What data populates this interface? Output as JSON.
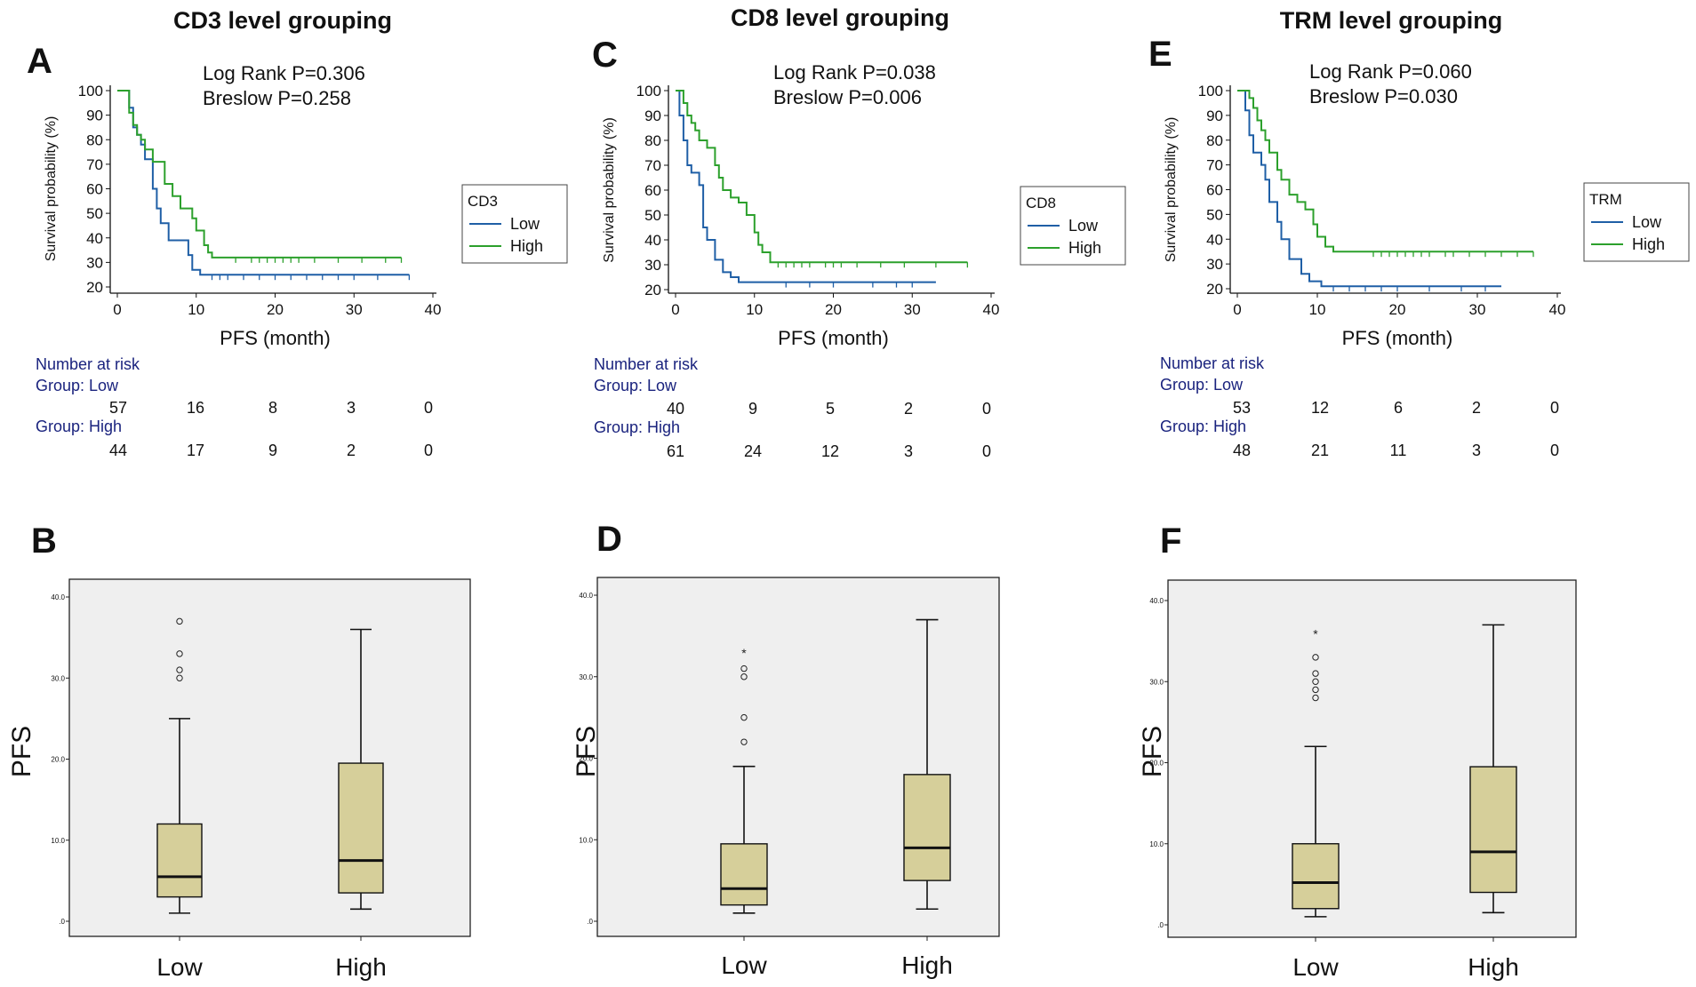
{
  "chart_data": [
    {
      "id": "A",
      "type": "line",
      "subtype": "kaplan-meier",
      "title": "CD3 level grouping",
      "panel_letter": "A",
      "xlabel": "PFS (month)",
      "ylabel": "Survival probability (%)",
      "xlim": [
        0,
        40
      ],
      "ylim": [
        20,
        100
      ],
      "xticks": [
        "0",
        "10",
        "20",
        "30",
        "40"
      ],
      "yticks": [
        "20",
        "30",
        "40",
        "50",
        "60",
        "70",
        "80",
        "90",
        "100"
      ],
      "stats": [
        "Log Rank P=0.306",
        "Breslow P=0.258"
      ],
      "legend_title": "CD3",
      "series": [
        {
          "name": "Low",
          "color": "#1f5fa6",
          "steps": [
            [
              0,
              100
            ],
            [
              1.5,
              100
            ],
            [
              1.5,
              93
            ],
            [
              2,
              93
            ],
            [
              2,
              85
            ],
            [
              2.5,
              85
            ],
            [
              2.5,
              82
            ],
            [
              3,
              82
            ],
            [
              3,
              78
            ],
            [
              3.5,
              78
            ],
            [
              3.5,
              72
            ],
            [
              4.5,
              72
            ],
            [
              4.5,
              60
            ],
            [
              5,
              60
            ],
            [
              5,
              52
            ],
            [
              5.5,
              52
            ],
            [
              5.5,
              46
            ],
            [
              6.5,
              46
            ],
            [
              6.5,
              39
            ],
            [
              9,
              39
            ],
            [
              9,
              33
            ],
            [
              9.5,
              33
            ],
            [
              9.5,
              27
            ],
            [
              10.5,
              27
            ],
            [
              10.5,
              25
            ],
            [
              37,
              25
            ]
          ],
          "censors": [
            12,
            13,
            14,
            16,
            18,
            20,
            22,
            24,
            26,
            28,
            30,
            33,
            37
          ]
        },
        {
          "name": "High",
          "color": "#2ca02c",
          "steps": [
            [
              0,
              100
            ],
            [
              1.5,
              100
            ],
            [
              1.5,
              91
            ],
            [
              2,
              91
            ],
            [
              2,
              86
            ],
            [
              2.5,
              86
            ],
            [
              2.5,
              82
            ],
            [
              3,
              82
            ],
            [
              3,
              80
            ],
            [
              3.5,
              80
            ],
            [
              3.5,
              76
            ],
            [
              4.5,
              76
            ],
            [
              4.5,
              71
            ],
            [
              6,
              71
            ],
            [
              6,
              62
            ],
            [
              7,
              62
            ],
            [
              7,
              57
            ],
            [
              8,
              57
            ],
            [
              8,
              52
            ],
            [
              9.5,
              52
            ],
            [
              9.5,
              48
            ],
            [
              10,
              48
            ],
            [
              10,
              43
            ],
            [
              11,
              43
            ],
            [
              11,
              37
            ],
            [
              11.5,
              37
            ],
            [
              11.5,
              34
            ],
            [
              12,
              34
            ],
            [
              12,
              32
            ],
            [
              36,
              32
            ]
          ],
          "censors": [
            15,
            17,
            18,
            19,
            20,
            21,
            22,
            23,
            25,
            28,
            31,
            34,
            36
          ]
        }
      ],
      "risk_table": {
        "header": "Number at risk",
        "rows": [
          {
            "label": "Group: Low",
            "values": [
              "57",
              "16",
              "8",
              "3",
              "0"
            ]
          },
          {
            "label": "Group: High",
            "values": [
              "44",
              "17",
              "9",
              "2",
              "0"
            ]
          }
        ]
      }
    },
    {
      "id": "C",
      "type": "line",
      "subtype": "kaplan-meier",
      "title": "CD8 level grouping",
      "panel_letter": "C",
      "xlabel": "PFS (month)",
      "ylabel": "Survival probability (%)",
      "xlim": [
        0,
        40
      ],
      "ylim": [
        20,
        100
      ],
      "xticks": [
        "0",
        "10",
        "20",
        "30",
        "40"
      ],
      "yticks": [
        "20",
        "30",
        "40",
        "50",
        "60",
        "70",
        "80",
        "90",
        "100"
      ],
      "stats": [
        "Log Rank P=0.038",
        "Breslow P=0.006"
      ],
      "legend_title": "CD8",
      "series": [
        {
          "name": "Low",
          "color": "#1f5fa6",
          "steps": [
            [
              0,
              100
            ],
            [
              0.5,
              100
            ],
            [
              0.5,
              90
            ],
            [
              1,
              90
            ],
            [
              1,
              80
            ],
            [
              1.5,
              80
            ],
            [
              1.5,
              70
            ],
            [
              2,
              70
            ],
            [
              2,
              67
            ],
            [
              3,
              67
            ],
            [
              3,
              62
            ],
            [
              3.5,
              62
            ],
            [
              3.5,
              45
            ],
            [
              4,
              45
            ],
            [
              4,
              40
            ],
            [
              5,
              40
            ],
            [
              5,
              32
            ],
            [
              6,
              32
            ],
            [
              6,
              27
            ],
            [
              7,
              27
            ],
            [
              7,
              25
            ],
            [
              8,
              25
            ],
            [
              8,
              23
            ],
            [
              33,
              23
            ]
          ],
          "censors": [
            14,
            17,
            20,
            25,
            28,
            30
          ]
        },
        {
          "name": "High",
          "color": "#2ca02c",
          "steps": [
            [
              0,
              100
            ],
            [
              1,
              100
            ],
            [
              1,
              95
            ],
            [
              1.5,
              95
            ],
            [
              1.5,
              90
            ],
            [
              2,
              90
            ],
            [
              2,
              87
            ],
            [
              2.5,
              87
            ],
            [
              2.5,
              84
            ],
            [
              3,
              84
            ],
            [
              3,
              80
            ],
            [
              4,
              80
            ],
            [
              4,
              77
            ],
            [
              5,
              77
            ],
            [
              5,
              70
            ],
            [
              5.5,
              70
            ],
            [
              5.5,
              65
            ],
            [
              6,
              65
            ],
            [
              6,
              60
            ],
            [
              7,
              60
            ],
            [
              7,
              57
            ],
            [
              8,
              57
            ],
            [
              8,
              55
            ],
            [
              9,
              55
            ],
            [
              9,
              50
            ],
            [
              10,
              50
            ],
            [
              10,
              43
            ],
            [
              10.5,
              43
            ],
            [
              10.5,
              38
            ],
            [
              11,
              38
            ],
            [
              11,
              35
            ],
            [
              12,
              35
            ],
            [
              12,
              31
            ],
            [
              37,
              31
            ]
          ],
          "censors": [
            13,
            14,
            15,
            16,
            17,
            19,
            20,
            21,
            23,
            26,
            29,
            33,
            37
          ]
        }
      ],
      "risk_table": {
        "header": "Number at risk",
        "rows": [
          {
            "label": "Group: Low",
            "values": [
              "40",
              "9",
              "5",
              "2",
              "0"
            ]
          },
          {
            "label": "Group: High",
            "values": [
              "61",
              "24",
              "12",
              "3",
              "0"
            ]
          }
        ]
      }
    },
    {
      "id": "E",
      "type": "line",
      "subtype": "kaplan-meier",
      "title": "TRM level grouping",
      "panel_letter": "E",
      "xlabel": "PFS (month)",
      "ylabel": "Survival probability (%)",
      "xlim": [
        0,
        40
      ],
      "ylim": [
        20,
        100
      ],
      "xticks": [
        "0",
        "10",
        "20",
        "30",
        "40"
      ],
      "yticks": [
        "20",
        "30",
        "40",
        "50",
        "60",
        "70",
        "80",
        "90",
        "100"
      ],
      "stats": [
        "Log Rank P=0.060",
        "Breslow P=0.030"
      ],
      "legend_title": "TRM",
      "series": [
        {
          "name": "Low",
          "color": "#1f5fa6",
          "steps": [
            [
              0,
              100
            ],
            [
              1,
              100
            ],
            [
              1,
              92
            ],
            [
              1.5,
              92
            ],
            [
              1.5,
              82
            ],
            [
              2,
              82
            ],
            [
              2,
              75
            ],
            [
              3,
              75
            ],
            [
              3,
              70
            ],
            [
              3.5,
              70
            ],
            [
              3.5,
              64
            ],
            [
              4,
              64
            ],
            [
              4,
              55
            ],
            [
              5,
              55
            ],
            [
              5,
              47
            ],
            [
              5.5,
              47
            ],
            [
              5.5,
              40
            ],
            [
              6.5,
              40
            ],
            [
              6.5,
              32
            ],
            [
              8,
              32
            ],
            [
              8,
              26
            ],
            [
              9,
              26
            ],
            [
              9,
              23
            ],
            [
              10.5,
              23
            ],
            [
              10.5,
              21
            ],
            [
              33,
              21
            ]
          ],
          "censors": [
            12,
            14,
            16,
            18,
            20,
            24,
            28,
            31
          ]
        },
        {
          "name": "High",
          "color": "#2ca02c",
          "steps": [
            [
              0,
              100
            ],
            [
              1.5,
              100
            ],
            [
              1.5,
              97
            ],
            [
              2,
              97
            ],
            [
              2,
              93
            ],
            [
              2.5,
              93
            ],
            [
              2.5,
              88
            ],
            [
              3,
              88
            ],
            [
              3,
              84
            ],
            [
              3.5,
              84
            ],
            [
              3.5,
              80
            ],
            [
              4,
              80
            ],
            [
              4,
              75
            ],
            [
              5,
              75
            ],
            [
              5,
              68
            ],
            [
              5.5,
              68
            ],
            [
              5.5,
              64
            ],
            [
              6.5,
              64
            ],
            [
              6.5,
              58
            ],
            [
              7.5,
              58
            ],
            [
              7.5,
              55
            ],
            [
              8.5,
              55
            ],
            [
              8.5,
              52
            ],
            [
              9.5,
              52
            ],
            [
              9.5,
              46
            ],
            [
              10,
              46
            ],
            [
              10,
              41
            ],
            [
              11,
              41
            ],
            [
              11,
              37
            ],
            [
              12,
              37
            ],
            [
              12,
              35
            ],
            [
              37,
              35
            ]
          ],
          "censors": [
            17,
            18,
            19,
            20,
            21,
            22,
            23,
            24,
            26,
            27,
            29,
            31,
            33,
            35,
            37
          ]
        }
      ],
      "risk_table": {
        "header": "Number at risk",
        "rows": [
          {
            "label": "Group: Low",
            "values": [
              "53",
              "12",
              "6",
              "2",
              "0"
            ]
          },
          {
            "label": "Group: High",
            "values": [
              "48",
              "21",
              "11",
              "3",
              "0"
            ]
          }
        ]
      }
    },
    {
      "id": "B",
      "type": "box",
      "panel_letter": "B",
      "ylabel": "PFS",
      "ylim": [
        0,
        40
      ],
      "yticks": [
        ".0",
        "10.0",
        "20.0",
        "30.0",
        "40.0"
      ],
      "categories": [
        "Low",
        "High"
      ],
      "boxes": [
        {
          "min": 1,
          "q1": 3,
          "median": 5.5,
          "q3": 12,
          "max": 25,
          "outliers": [
            30,
            31,
            33,
            37
          ],
          "extremes": []
        },
        {
          "min": 1.5,
          "q1": 3.5,
          "median": 7.5,
          "q3": 19.5,
          "max": 36,
          "outliers": [],
          "extremes": []
        }
      ]
    },
    {
      "id": "D",
      "type": "box",
      "panel_letter": "D",
      "ylabel": "PFS",
      "ylim": [
        0,
        40
      ],
      "yticks": [
        ".0",
        "10.0",
        "20.0",
        "30.0",
        "40.0"
      ],
      "categories": [
        "Low",
        "High"
      ],
      "boxes": [
        {
          "min": 1,
          "q1": 2,
          "median": 4,
          "q3": 9.5,
          "max": 19,
          "outliers": [
            22,
            25,
            30,
            31
          ],
          "extremes": [
            33
          ]
        },
        {
          "min": 1.5,
          "q1": 5,
          "median": 9,
          "q3": 18,
          "max": 37,
          "outliers": [],
          "extremes": []
        }
      ]
    },
    {
      "id": "F",
      "type": "box",
      "panel_letter": "F",
      "ylabel": "PFS",
      "ylim": [
        0,
        40
      ],
      "yticks": [
        ".0",
        "10.0",
        "20.0",
        "30.0",
        "40.0"
      ],
      "categories": [
        "Low",
        "High"
      ],
      "boxes": [
        {
          "min": 1,
          "q1": 2,
          "median": 5.2,
          "q3": 10,
          "max": 22,
          "outliers": [
            28,
            29,
            30,
            31,
            33
          ],
          "extremes": [
            36
          ]
        },
        {
          "min": 1.5,
          "q1": 4,
          "median": 9,
          "q3": 19.5,
          "max": 37,
          "outliers": [],
          "extremes": []
        }
      ]
    }
  ],
  "colors": {
    "low_line": "#1f5fa6",
    "high_line": "#2ca02c",
    "box_fill": "#d6cf9a",
    "box_bg": "#efefef"
  }
}
